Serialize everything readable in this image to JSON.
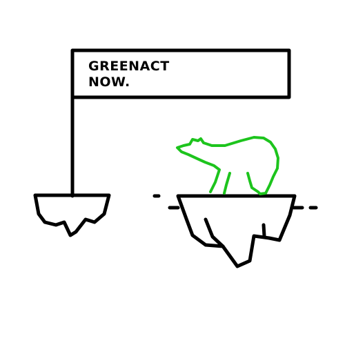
{
  "sign": {
    "line1": "GREENACT",
    "line2": "NOW."
  },
  "illustration": {
    "bear_icon": "polar-bear-icon",
    "flag_icon": "flag-sign-icon",
    "iceberg_icon": "iceberg-icon"
  },
  "colors": {
    "outline": "#000000",
    "bear": "#1dc41d",
    "background": "#ffffff"
  }
}
